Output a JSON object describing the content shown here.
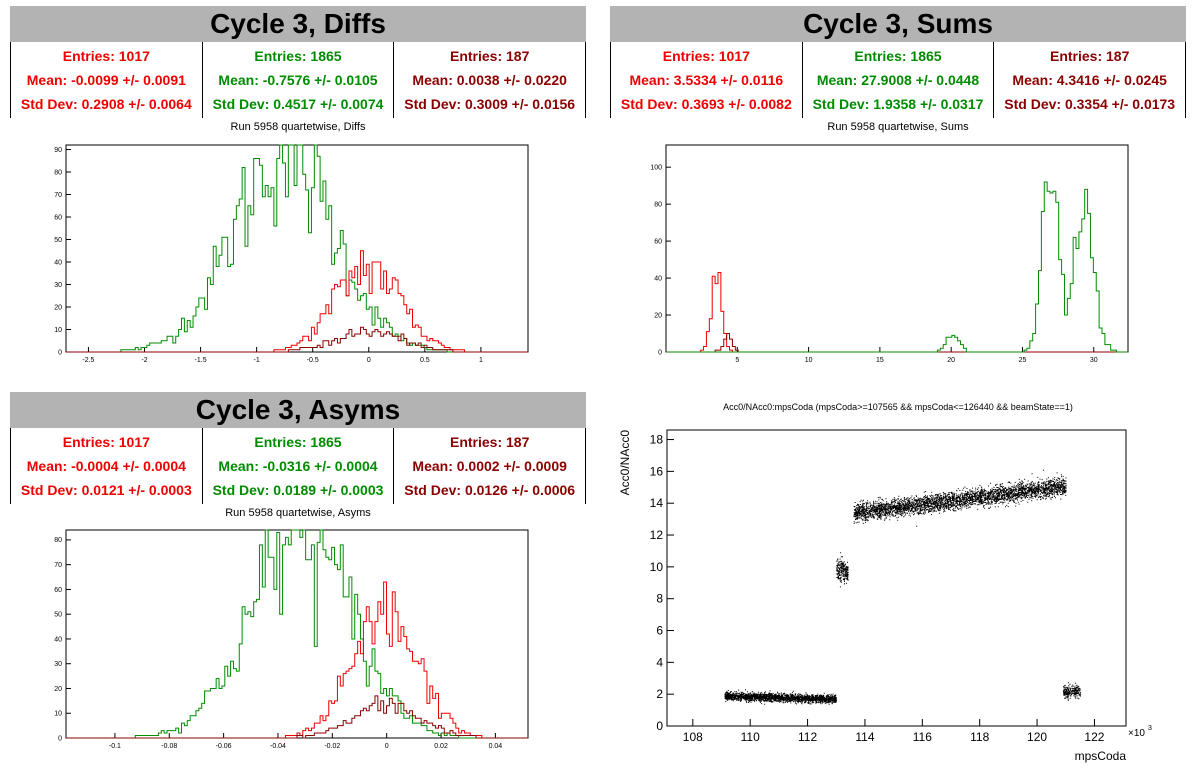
{
  "colors": {
    "red": "#ee0000",
    "green": "#008c00",
    "darkred": "#8b0000",
    "scatter": "#000000"
  },
  "panels": {
    "diffs": {
      "title": "Cycle 3, Diffs",
      "caption": "Run 5958 quartetwise, Diffs",
      "stats": [
        {
          "entries": "Entries: 1017",
          "mean": "Mean: -0.0099 +/- 0.0091",
          "std": "Std Dev: 0.2908 +/- 0.0064",
          "color": "#ee0000"
        },
        {
          "entries": "Entries: 1865",
          "mean": "Mean: -0.7576 +/- 0.0105",
          "std": "Std Dev: 0.4517 +/- 0.0074",
          "color": "#008c00"
        },
        {
          "entries": "Entries: 187",
          "mean": "Mean: 0.0038 +/- 0.0220",
          "std": "Std Dev: 0.3009 +/- 0.0156",
          "color": "#8b0000"
        }
      ]
    },
    "sums": {
      "title": "Cycle 3, Sums",
      "caption": "Run 5958 quartetwise, Sums",
      "stats": [
        {
          "entries": "Entries: 1017",
          "mean": "Mean: 3.5334 +/- 0.0116",
          "std": "Std Dev: 0.3693 +/- 0.0082",
          "color": "#ee0000"
        },
        {
          "entries": "Entries: 1865",
          "mean": "Mean: 27.9008 +/- 0.0448",
          "std": "Std Dev: 1.9358 +/- 0.0317",
          "color": "#008c00"
        },
        {
          "entries": "Entries: 187",
          "mean": "Mean: 4.3416 +/- 0.0245",
          "std": "Std Dev: 0.3354 +/- 0.0173",
          "color": "#8b0000"
        }
      ]
    },
    "asyms": {
      "title": "Cycle 3, Asyms",
      "caption": "Run 5958 quartetwise, Asyms",
      "stats": [
        {
          "entries": "Entries: 1017",
          "mean": "Mean: -0.0004 +/- 0.0004",
          "std": "Std Dev: 0.0121 +/- 0.0003",
          "color": "#ee0000"
        },
        {
          "entries": "Entries: 1865",
          "mean": "Mean: -0.0316 +/- 0.0004",
          "std": "Std Dev: 0.0189 +/- 0.0003",
          "color": "#008c00"
        },
        {
          "entries": "Entries: 187",
          "mean": "Mean: 0.0002 +/- 0.0009",
          "std": "Std Dev: 0.0126 +/- 0.0006",
          "color": "#8b0000"
        }
      ]
    },
    "scatter": {
      "caption": "Acc0/NAcc0:mpsCoda (mpsCoda>=107565 && mpsCoda<=126440 && beamState==1)"
    }
  },
  "chart_data": [
    {
      "type": "histogram",
      "name": "diffs",
      "xlim": [
        -2.7,
        1.42
      ],
      "ylim": [
        0,
        92
      ],
      "xticks": [
        -2.5,
        -2,
        -1.5,
        -1,
        -0.5,
        0,
        0.5,
        1
      ],
      "yticks": [
        0,
        10,
        20,
        30,
        40,
        50,
        60,
        70,
        80,
        90
      ],
      "series": [
        {
          "color": "green",
          "mean": -0.7576,
          "std": 0.4517,
          "peak": 88
        },
        {
          "color": "red",
          "mean": -0.0099,
          "std": 0.2908,
          "peak": 38
        },
        {
          "color": "darkred",
          "mean": 0.0038,
          "std": 0.3009,
          "peak": 9
        }
      ]
    },
    {
      "type": "histogram",
      "name": "sums",
      "xlim": [
        0,
        32.4
      ],
      "ylim": [
        0,
        112
      ],
      "xticks": [
        5,
        10,
        15,
        20,
        25,
        30
      ],
      "yticks": [
        0,
        20,
        40,
        60,
        80,
        100
      ],
      "series": [
        {
          "color": "red",
          "mean": 3.5334,
          "std": 0.3693,
          "peak": 39
        },
        {
          "color": "darkred",
          "mean": 4.3416,
          "std": 0.3354,
          "peak": 9
        },
        {
          "color": "green",
          "mean": 20.1,
          "std": 0.45,
          "peak": 9
        },
        {
          "color": "green",
          "mean": 27.0,
          "std": 0.55,
          "peak": 108
        },
        {
          "color": "green",
          "mean": 29.3,
          "std": 0.7,
          "peak": 80
        }
      ]
    },
    {
      "type": "histogram",
      "name": "asyms",
      "xlim": [
        -0.118,
        0.052
      ],
      "ylim": [
        0,
        84
      ],
      "xticks": [
        -0.1,
        -0.08,
        -0.06,
        -0.04,
        -0.02,
        0,
        0.02,
        0.04
      ],
      "yticks": [
        0,
        10,
        20,
        30,
        40,
        50,
        60,
        70,
        80
      ],
      "series": [
        {
          "color": "green",
          "mean": -0.0316,
          "std": 0.0189,
          "peak": 81
        },
        {
          "color": "red",
          "mean": -0.0004,
          "std": 0.0121,
          "peak": 48
        },
        {
          "color": "darkred",
          "mean": 0.0002,
          "std": 0.0126,
          "peak": 13
        }
      ]
    },
    {
      "type": "scatter",
      "name": "acc0",
      "xlabel": "mpsCoda",
      "ylabel": "Acc0/NAcc0",
      "xexp": "×10",
      "xexpPow": "3",
      "xlim": [
        107.1,
        123.1
      ],
      "ylim": [
        0,
        18.6
      ],
      "xticks": [
        108,
        110,
        112,
        114,
        116,
        118,
        120,
        122
      ],
      "yticks": [
        0,
        2,
        4,
        6,
        8,
        10,
        12,
        14,
        16,
        18
      ],
      "clusters": [
        {
          "x": [
            109.1,
            113.0
          ],
          "y0": 1.9,
          "y1": 1.7,
          "spread": 0.25,
          "n": 2200
        },
        {
          "x": [
            113.0,
            113.4
          ],
          "y0": 9.8,
          "y1": 9.8,
          "spread": 0.7,
          "n": 260
        },
        {
          "x": [
            113.6,
            121.0
          ],
          "y0": 13.4,
          "y1": 15.1,
          "spread": 0.55,
          "n": 3600
        },
        {
          "x": [
            120.9,
            121.5
          ],
          "y0": 2.2,
          "y1": 2.2,
          "spread": 0.4,
          "n": 240
        }
      ]
    }
  ]
}
